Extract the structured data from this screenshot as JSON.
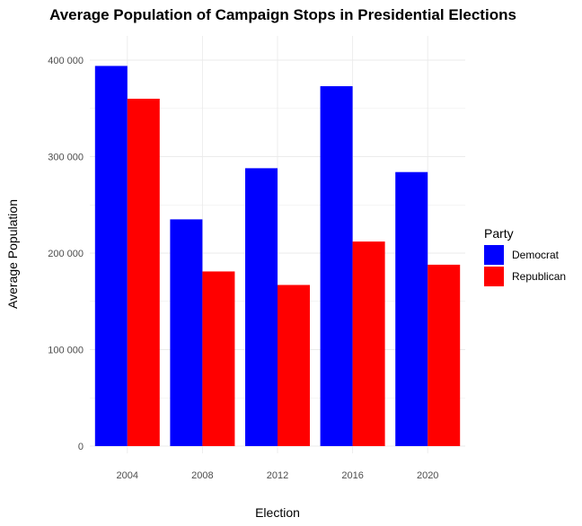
{
  "chart_data": {
    "type": "bar",
    "title": "Average Population of Campaign Stops in Presidential Elections",
    "xlabel": "Election",
    "ylabel": "Average Population",
    "categories": [
      "2004",
      "2008",
      "2012",
      "2016",
      "2020"
    ],
    "series": [
      {
        "name": "Democrat",
        "color": "#0000ff",
        "values": [
          394000,
          235000,
          288000,
          373000,
          284000
        ]
      },
      {
        "name": "Republican",
        "color": "#ff0000",
        "values": [
          360000,
          181000,
          167000,
          212000,
          188000
        ]
      }
    ],
    "ylim": [
      0,
      400000
    ],
    "ytick_values": [
      0,
      100000,
      200000,
      300000,
      400000
    ],
    "ytick_labels": [
      "0",
      "100 000",
      "200 000",
      "300 000",
      "400 000"
    ],
    "legend": {
      "title": "Party",
      "placement": "right"
    },
    "grid": true,
    "grid_color": "#ebebeb"
  }
}
